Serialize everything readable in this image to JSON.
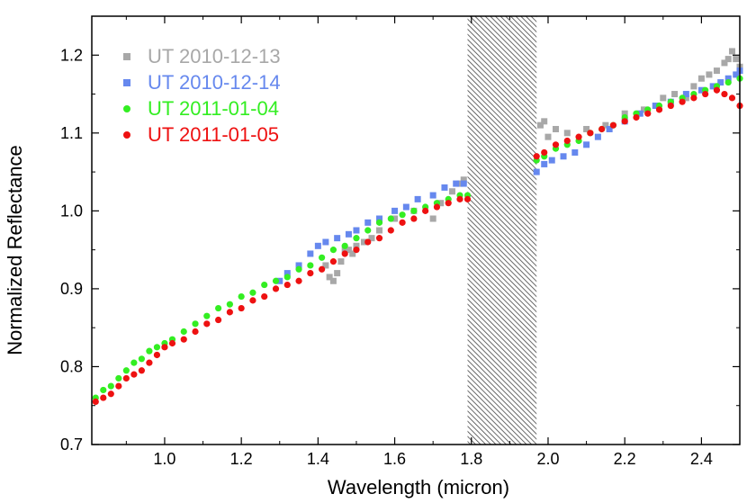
{
  "chart_data": {
    "type": "scatter",
    "xlabel": "Wavelength (micron)",
    "ylabel": "Normalized Reflectance",
    "xlim": [
      0.81,
      2.5
    ],
    "ylim": [
      0.7,
      1.25
    ],
    "xticks": [
      1.0,
      1.2,
      1.4,
      1.6,
      1.8,
      2.0,
      2.2,
      2.4
    ],
    "xtick_labels": [
      "1.0",
      "1.2",
      "1.4",
      "1.6",
      "1.8",
      "2.0",
      "2.2",
      "2.4"
    ],
    "yticks": [
      0.7,
      0.8,
      0.9,
      1.0,
      1.1,
      1.2
    ],
    "ytick_labels": [
      "0.7",
      "0.8",
      "0.9",
      "1.0",
      "1.1",
      "1.2"
    ],
    "excluded_band": [
      1.79,
      1.97
    ],
    "legend_position": "top-left",
    "series": [
      {
        "name": "UT 2010-12-13",
        "color": "#a8a8a8",
        "marker": "square",
        "points": [
          [
            1.42,
            0.93
          ],
          [
            1.43,
            0.915
          ],
          [
            1.44,
            0.91
          ],
          [
            1.45,
            0.92
          ],
          [
            1.46,
            0.935
          ],
          [
            1.47,
            0.95
          ],
          [
            1.48,
            0.95
          ],
          [
            1.49,
            0.945
          ],
          [
            1.5,
            0.955
          ],
          [
            1.52,
            0.96
          ],
          [
            1.54,
            0.965
          ],
          [
            1.56,
            0.975
          ],
          [
            1.6,
            0.99
          ],
          [
            1.65,
            1.0
          ],
          [
            1.7,
            0.99
          ],
          [
            1.72,
            1.01
          ],
          [
            1.75,
            1.025
          ],
          [
            1.77,
            1.035
          ],
          [
            1.78,
            1.04
          ],
          [
            1.98,
            1.11
          ],
          [
            1.99,
            1.115
          ],
          [
            2.0,
            1.095
          ],
          [
            2.02,
            1.105
          ],
          [
            2.05,
            1.1
          ],
          [
            2.1,
            1.105
          ],
          [
            2.15,
            1.11
          ],
          [
            2.2,
            1.125
          ],
          [
            2.25,
            1.13
          ],
          [
            2.3,
            1.145
          ],
          [
            2.33,
            1.15
          ],
          [
            2.36,
            1.145
          ],
          [
            2.38,
            1.16
          ],
          [
            2.4,
            1.17
          ],
          [
            2.42,
            1.175
          ],
          [
            2.44,
            1.18
          ],
          [
            2.46,
            1.19
          ],
          [
            2.47,
            1.195
          ],
          [
            2.48,
            1.205
          ],
          [
            2.49,
            1.195
          ],
          [
            2.5,
            1.185
          ]
        ]
      },
      {
        "name": "UT 2010-12-14",
        "color": "#6688ee",
        "marker": "square",
        "points": [
          [
            1.3,
            0.91
          ],
          [
            1.32,
            0.92
          ],
          [
            1.35,
            0.93
          ],
          [
            1.38,
            0.945
          ],
          [
            1.4,
            0.955
          ],
          [
            1.42,
            0.96
          ],
          [
            1.45,
            0.965
          ],
          [
            1.48,
            0.97
          ],
          [
            1.5,
            0.975
          ],
          [
            1.53,
            0.985
          ],
          [
            1.56,
            0.99
          ],
          [
            1.6,
            1.0
          ],
          [
            1.63,
            1.005
          ],
          [
            1.66,
            1.015
          ],
          [
            1.7,
            1.02
          ],
          [
            1.73,
            1.03
          ],
          [
            1.76,
            1.035
          ],
          [
            1.78,
            1.035
          ],
          [
            1.97,
            1.05
          ],
          [
            1.99,
            1.06
          ],
          [
            2.01,
            1.065
          ],
          [
            2.04,
            1.07
          ],
          [
            2.07,
            1.075
          ],
          [
            2.1,
            1.085
          ],
          [
            2.13,
            1.095
          ],
          [
            2.16,
            1.105
          ],
          [
            2.2,
            1.115
          ],
          [
            2.24,
            1.125
          ],
          [
            2.28,
            1.135
          ],
          [
            2.32,
            1.14
          ],
          [
            2.36,
            1.15
          ],
          [
            2.4,
            1.155
          ],
          [
            2.43,
            1.16
          ],
          [
            2.45,
            1.165
          ],
          [
            2.47,
            1.17
          ],
          [
            2.49,
            1.175
          ],
          [
            2.5,
            1.18
          ]
        ]
      },
      {
        "name": "UT 2011-01-04",
        "color": "#33ee22",
        "marker": "circle",
        "points": [
          [
            0.82,
            0.76
          ],
          [
            0.84,
            0.77
          ],
          [
            0.86,
            0.775
          ],
          [
            0.88,
            0.785
          ],
          [
            0.9,
            0.795
          ],
          [
            0.92,
            0.805
          ],
          [
            0.94,
            0.81
          ],
          [
            0.96,
            0.82
          ],
          [
            0.98,
            0.825
          ],
          [
            1.0,
            0.83
          ],
          [
            1.02,
            0.835
          ],
          [
            1.05,
            0.845
          ],
          [
            1.08,
            0.855
          ],
          [
            1.11,
            0.865
          ],
          [
            1.14,
            0.875
          ],
          [
            1.17,
            0.88
          ],
          [
            1.2,
            0.89
          ],
          [
            1.23,
            0.895
          ],
          [
            1.26,
            0.905
          ],
          [
            1.29,
            0.91
          ],
          [
            1.32,
            0.915
          ],
          [
            1.35,
            0.925
          ],
          [
            1.38,
            0.93
          ],
          [
            1.41,
            0.94
          ],
          [
            1.44,
            0.95
          ],
          [
            1.47,
            0.955
          ],
          [
            1.5,
            0.965
          ],
          [
            1.53,
            0.975
          ],
          [
            1.56,
            0.985
          ],
          [
            1.59,
            0.99
          ],
          [
            1.62,
            0.995
          ],
          [
            1.65,
            1.0
          ],
          [
            1.68,
            1.005
          ],
          [
            1.71,
            1.01
          ],
          [
            1.74,
            1.015
          ],
          [
            1.77,
            1.02
          ],
          [
            1.79,
            1.02
          ],
          [
            1.97,
            1.065
          ],
          [
            1.99,
            1.07
          ],
          [
            2.02,
            1.08
          ],
          [
            2.05,
            1.085
          ],
          [
            2.08,
            1.09
          ],
          [
            2.11,
            1.1
          ],
          [
            2.14,
            1.105
          ],
          [
            2.17,
            1.11
          ],
          [
            2.2,
            1.12
          ],
          [
            2.23,
            1.125
          ],
          [
            2.26,
            1.13
          ],
          [
            2.29,
            1.135
          ],
          [
            2.32,
            1.14
          ],
          [
            2.35,
            1.145
          ],
          [
            2.38,
            1.15
          ],
          [
            2.41,
            1.155
          ],
          [
            2.44,
            1.16
          ],
          [
            2.47,
            1.165
          ],
          [
            2.5,
            1.17
          ]
        ]
      },
      {
        "name": "UT 2011-01-05",
        "color": "#ee1111",
        "marker": "circle",
        "points": [
          [
            0.82,
            0.755
          ],
          [
            0.84,
            0.76
          ],
          [
            0.86,
            0.765
          ],
          [
            0.88,
            0.775
          ],
          [
            0.9,
            0.785
          ],
          [
            0.92,
            0.79
          ],
          [
            0.94,
            0.795
          ],
          [
            0.96,
            0.805
          ],
          [
            0.98,
            0.815
          ],
          [
            1.0,
            0.825
          ],
          [
            1.02,
            0.83
          ],
          [
            1.05,
            0.835
          ],
          [
            1.08,
            0.845
          ],
          [
            1.11,
            0.855
          ],
          [
            1.14,
            0.86
          ],
          [
            1.17,
            0.87
          ],
          [
            1.2,
            0.875
          ],
          [
            1.23,
            0.885
          ],
          [
            1.26,
            0.89
          ],
          [
            1.29,
            0.9
          ],
          [
            1.32,
            0.905
          ],
          [
            1.35,
            0.91
          ],
          [
            1.38,
            0.92
          ],
          [
            1.41,
            0.925
          ],
          [
            1.44,
            0.935
          ],
          [
            1.47,
            0.945
          ],
          [
            1.5,
            0.95
          ],
          [
            1.53,
            0.96
          ],
          [
            1.56,
            0.965
          ],
          [
            1.59,
            0.975
          ],
          [
            1.62,
            0.985
          ],
          [
            1.65,
            0.99
          ],
          [
            1.68,
            1.0
          ],
          [
            1.71,
            1.005
          ],
          [
            1.74,
            1.01
          ],
          [
            1.77,
            1.015
          ],
          [
            1.79,
            1.015
          ],
          [
            1.97,
            1.07
          ],
          [
            1.99,
            1.075
          ],
          [
            2.02,
            1.085
          ],
          [
            2.05,
            1.09
          ],
          [
            2.08,
            1.095
          ],
          [
            2.11,
            1.1
          ],
          [
            2.14,
            1.105
          ],
          [
            2.17,
            1.11
          ],
          [
            2.2,
            1.115
          ],
          [
            2.23,
            1.12
          ],
          [
            2.26,
            1.125
          ],
          [
            2.29,
            1.13
          ],
          [
            2.32,
            1.135
          ],
          [
            2.35,
            1.14
          ],
          [
            2.38,
            1.145
          ],
          [
            2.41,
            1.15
          ],
          [
            2.44,
            1.155
          ],
          [
            2.46,
            1.15
          ],
          [
            2.48,
            1.145
          ],
          [
            2.5,
            1.135
          ]
        ]
      }
    ]
  }
}
